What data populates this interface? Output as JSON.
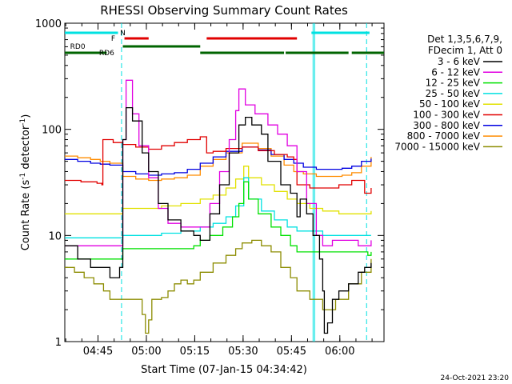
{
  "chart_data": {
    "type": "line",
    "title": "RHESSI Observing Summary Count Rates",
    "xlabel": "Start Time (07-Jan-15 04:34:42)",
    "ylabel_main": "Count Rate (s",
    "ylabel_sup1": "-1",
    "ylabel_mid": " detector",
    "ylabel_sup2": "-1",
    "ylabel_end": ")",
    "yscale": "log",
    "ylim": [
      1,
      1000
    ],
    "xlim_minutes": [
      0,
      99
    ],
    "x_ticks": [
      {
        "label": "04:45",
        "minute": 10.3
      },
      {
        "label": "05:00",
        "minute": 25.3
      },
      {
        "label": "05:15",
        "minute": 40.3
      },
      {
        "label": "05:30",
        "minute": 55.3
      },
      {
        "label": "05:45",
        "minute": 70.3
      },
      {
        "label": "06:00",
        "minute": 85.3
      }
    ],
    "y_ticks": [
      {
        "label": "1",
        "value": 1
      },
      {
        "label": "10",
        "value": 10
      },
      {
        "label": "100",
        "value": 100
      },
      {
        "label": "1000",
        "value": 1000
      }
    ],
    "legend_header": [
      "Det 1,3,5,6,7,9,",
      "FDecim 1, Att 0"
    ],
    "legend_position": "right",
    "series": [
      {
        "name": "3 - 6 keV",
        "color": "#000000",
        "points": [
          [
            0,
            8
          ],
          [
            4,
            6
          ],
          [
            8,
            5
          ],
          [
            14,
            4
          ],
          [
            17,
            5
          ],
          [
            18,
            80
          ],
          [
            19,
            160
          ],
          [
            21,
            120
          ],
          [
            24,
            60
          ],
          [
            26,
            40
          ],
          [
            29,
            20
          ],
          [
            32,
            14
          ],
          [
            36,
            11
          ],
          [
            40,
            10
          ],
          [
            42,
            9
          ],
          [
            45,
            16
          ],
          [
            48,
            30
          ],
          [
            51,
            60
          ],
          [
            54,
            110
          ],
          [
            56,
            130
          ],
          [
            58,
            110
          ],
          [
            61,
            90
          ],
          [
            63,
            50
          ],
          [
            67,
            30
          ],
          [
            70,
            25
          ],
          [
            72,
            15
          ],
          [
            73,
            22
          ],
          [
            75,
            16
          ],
          [
            77,
            10
          ],
          [
            79,
            6
          ],
          [
            80,
            3
          ],
          [
            80.5,
            1.2
          ],
          [
            81.5,
            1.5
          ],
          [
            83,
            2.5
          ],
          [
            85,
            3
          ],
          [
            88,
            3.5
          ],
          [
            91,
            4.5
          ],
          [
            93,
            5
          ],
          [
            95,
            5.5
          ]
        ]
      },
      {
        "name": "6 - 12 keV",
        "color": "#e100e1",
        "points": [
          [
            0,
            8
          ],
          [
            4,
            8
          ],
          [
            10,
            8
          ],
          [
            15,
            8
          ],
          [
            17,
            8
          ],
          [
            18,
            80
          ],
          [
            19,
            290
          ],
          [
            21,
            140
          ],
          [
            23,
            70
          ],
          [
            26,
            35
          ],
          [
            29,
            18
          ],
          [
            32,
            13
          ],
          [
            36,
            12
          ],
          [
            40,
            12
          ],
          [
            42,
            12
          ],
          [
            45,
            20
          ],
          [
            48,
            40
          ],
          [
            51,
            80
          ],
          [
            53,
            150
          ],
          [
            54,
            240
          ],
          [
            56,
            170
          ],
          [
            59,
            140
          ],
          [
            63,
            110
          ],
          [
            66,
            90
          ],
          [
            69,
            70
          ],
          [
            72,
            40
          ],
          [
            75,
            20
          ],
          [
            78,
            10
          ],
          [
            80,
            8
          ],
          [
            83,
            9
          ],
          [
            88,
            9
          ],
          [
            91,
            8
          ],
          [
            95,
            9
          ]
        ]
      },
      {
        "name": "12 - 25 keV",
        "color": "#00e100",
        "points": [
          [
            0,
            6
          ],
          [
            5,
            6
          ],
          [
            11,
            6
          ],
          [
            15,
            6
          ],
          [
            17,
            6
          ],
          [
            18,
            7.5
          ],
          [
            26,
            7.5
          ],
          [
            34,
            7.5
          ],
          [
            40,
            8
          ],
          [
            42,
            9
          ],
          [
            45,
            10
          ],
          [
            49,
            12
          ],
          [
            52,
            15
          ],
          [
            54,
            20
          ],
          [
            55.5,
            32
          ],
          [
            57,
            22
          ],
          [
            60,
            16
          ],
          [
            64,
            12
          ],
          [
            67,
            10
          ],
          [
            70,
            8
          ],
          [
            72,
            7
          ],
          [
            77,
            7
          ],
          [
            81,
            7
          ],
          [
            86,
            7
          ],
          [
            91,
            7
          ],
          [
            94,
            6.5
          ],
          [
            95,
            7
          ]
        ]
      },
      {
        "name": "25 - 50 keV",
        "color": "#00e1e1",
        "points": [
          [
            0,
            9.5
          ],
          [
            5,
            9.5
          ],
          [
            10,
            9.5
          ],
          [
            15,
            9.5
          ],
          [
            17,
            9.5
          ],
          [
            18,
            10
          ],
          [
            24,
            10
          ],
          [
            30,
            10.5
          ],
          [
            36,
            11
          ],
          [
            42,
            12
          ],
          [
            46,
            13
          ],
          [
            50,
            15
          ],
          [
            53,
            19
          ],
          [
            55.5,
            35
          ],
          [
            57,
            22
          ],
          [
            61,
            17
          ],
          [
            65,
            14
          ],
          [
            69,
            12
          ],
          [
            72,
            11
          ],
          [
            76,
            11
          ],
          [
            80,
            10
          ],
          [
            85,
            10
          ],
          [
            91,
            10
          ],
          [
            95,
            10
          ]
        ]
      },
      {
        "name": "50 - 100 keV",
        "color": "#e1e100",
        "points": [
          [
            0,
            16
          ],
          [
            5,
            16
          ],
          [
            10,
            16
          ],
          [
            15,
            16
          ],
          [
            17,
            16
          ],
          [
            18,
            18
          ],
          [
            24,
            18
          ],
          [
            30,
            19
          ],
          [
            36,
            20
          ],
          [
            42,
            22
          ],
          [
            46,
            24
          ],
          [
            50,
            28
          ],
          [
            53,
            34
          ],
          [
            55.5,
            45
          ],
          [
            57,
            35
          ],
          [
            61,
            30
          ],
          [
            65,
            26
          ],
          [
            69,
            22
          ],
          [
            72,
            20
          ],
          [
            76,
            18
          ],
          [
            80,
            17
          ],
          [
            85,
            16
          ],
          [
            91,
            16
          ],
          [
            95,
            17
          ]
        ]
      },
      {
        "name": "100 - 300 keV",
        "color": "#e10000",
        "points": [
          [
            0,
            33
          ],
          [
            5,
            32
          ],
          [
            10,
            31
          ],
          [
            11.5,
            30
          ],
          [
            11.8,
            80
          ],
          [
            15,
            75
          ],
          [
            18,
            72
          ],
          [
            22,
            68
          ],
          [
            26,
            65
          ],
          [
            30,
            70
          ],
          [
            34,
            75
          ],
          [
            38,
            80
          ],
          [
            42,
            85
          ],
          [
            44,
            60
          ],
          [
            46,
            62
          ],
          [
            50,
            66
          ],
          [
            55,
            68
          ],
          [
            60,
            63
          ],
          [
            65,
            58
          ],
          [
            69,
            55
          ],
          [
            71,
            52
          ],
          [
            72,
            30
          ],
          [
            76,
            28
          ],
          [
            80,
            28
          ],
          [
            85,
            30
          ],
          [
            89,
            33
          ],
          [
            93,
            25
          ],
          [
            95,
            28
          ]
        ]
      },
      {
        "name": "300 - 800 keV",
        "color": "#0000e1",
        "points": [
          [
            0,
            52
          ],
          [
            4,
            50
          ],
          [
            8,
            48
          ],
          [
            11,
            47
          ],
          [
            14,
            46
          ],
          [
            18,
            40
          ],
          [
            22,
            38
          ],
          [
            26,
            37
          ],
          [
            30,
            38
          ],
          [
            34,
            39
          ],
          [
            38,
            42
          ],
          [
            42,
            48
          ],
          [
            46,
            55
          ],
          [
            50,
            62
          ],
          [
            55,
            68
          ],
          [
            60,
            64
          ],
          [
            64,
            58
          ],
          [
            68,
            52
          ],
          [
            71,
            48
          ],
          [
            74,
            44
          ],
          [
            78,
            42
          ],
          [
            82,
            42
          ],
          [
            86,
            43
          ],
          [
            89,
            45
          ],
          [
            92,
            50
          ],
          [
            95,
            53
          ]
        ]
      },
      {
        "name": "800 - 7000 keV",
        "color": "#ff8c00",
        "points": [
          [
            0,
            56
          ],
          [
            4,
            54
          ],
          [
            8,
            52
          ],
          [
            11,
            50
          ],
          [
            14,
            48
          ],
          [
            18,
            36
          ],
          [
            22,
            34
          ],
          [
            26,
            33
          ],
          [
            30,
            34
          ],
          [
            34,
            35
          ],
          [
            38,
            37
          ],
          [
            42,
            45
          ],
          [
            46,
            52
          ],
          [
            50,
            60
          ],
          [
            55,
            74
          ],
          [
            60,
            66
          ],
          [
            64,
            56
          ],
          [
            68,
            46
          ],
          [
            71,
            40
          ],
          [
            74,
            38
          ],
          [
            78,
            36
          ],
          [
            82,
            36
          ],
          [
            86,
            37
          ],
          [
            89,
            39
          ],
          [
            92,
            45
          ],
          [
            95,
            55
          ]
        ]
      },
      {
        "name": "7000 - 15000 keV",
        "color": "#8c8c00",
        "points": [
          [
            0,
            5
          ],
          [
            3,
            4.5
          ],
          [
            6,
            4
          ],
          [
            9,
            3.5
          ],
          [
            12,
            3
          ],
          [
            14,
            2.5
          ],
          [
            18,
            2.5
          ],
          [
            22,
            2.5
          ],
          [
            24,
            1.8
          ],
          [
            25,
            1.2
          ],
          [
            26,
            1.6
          ],
          [
            27,
            2.5
          ],
          [
            30,
            2.6
          ],
          [
            32,
            3
          ],
          [
            34,
            3.5
          ],
          [
            36,
            3.8
          ],
          [
            38,
            3.5
          ],
          [
            40,
            3.8
          ],
          [
            42,
            4.5
          ],
          [
            46,
            5.5
          ],
          [
            50,
            6.5
          ],
          [
            53,
            7.5
          ],
          [
            55,
            8.5
          ],
          [
            58,
            9
          ],
          [
            61,
            8
          ],
          [
            64,
            7
          ],
          [
            67,
            5
          ],
          [
            70,
            4
          ],
          [
            72,
            3
          ],
          [
            76,
            2.5
          ],
          [
            80,
            2
          ],
          [
            84,
            2.5
          ],
          [
            88,
            3.5
          ],
          [
            92,
            4.5
          ],
          [
            95,
            6
          ]
        ]
      }
    ],
    "markers": {
      "saa_color": "#00e1e1",
      "saa_solid_minutes": [
        77
      ],
      "saa_dashed_minutes": [
        17.6,
        93.6
      ],
      "status_bars": [
        {
          "label": "N",
          "color": "#00e1e1",
          "segments": [
            [
              0,
              16.5
            ],
            [
              76.5,
              94.5
            ]
          ],
          "label_minute": 18
        },
        {
          "label": "F",
          "color": "#e10000",
          "segments": [
            [
              18.5,
              26
            ],
            [
              44,
              72
            ]
          ],
          "label_minute": 15
        },
        {
          "label": "RD0",
          "color": "#006400",
          "segments": [
            [
              18,
              42
            ]
          ],
          "label_minute": 4
        },
        {
          "label": "RD6",
          "color": "#006400",
          "segments": [
            [
              0,
              13
            ],
            [
              42,
              68
            ],
            [
              68.5,
              88
            ],
            [
              89,
              99
            ]
          ],
          "label_minute": 13
        }
      ]
    }
  },
  "timestamp": "24-Oct-2021 23:20"
}
